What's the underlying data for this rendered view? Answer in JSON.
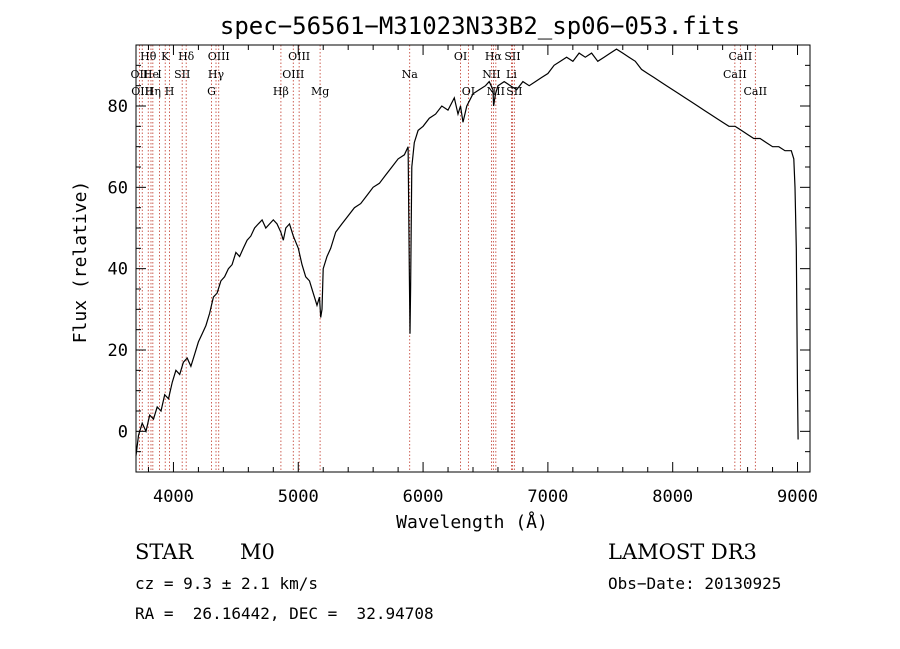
{
  "chart_data": {
    "type": "line",
    "title": "spec−56561−M31023N33B2_sp06−053.fits",
    "xlabel": "Wavelength (Å)",
    "ylabel": "Flux (relative)",
    "xlim": [
      3700,
      9100
    ],
    "ylim": [
      -10,
      95
    ],
    "xticks": [
      4000,
      5000,
      6000,
      7000,
      8000,
      9000
    ],
    "yticks": [
      0,
      20,
      40,
      60,
      80
    ],
    "series": [
      {
        "name": "flux",
        "x": [
          3700,
          3720,
          3750,
          3780,
          3810,
          3840,
          3870,
          3900,
          3930,
          3960,
          3990,
          4020,
          4050,
          4080,
          4110,
          4140,
          4170,
          4200,
          4230,
          4260,
          4290,
          4320,
          4350,
          4380,
          4410,
          4440,
          4470,
          4500,
          4530,
          4560,
          4590,
          4620,
          4650,
          4680,
          4710,
          4740,
          4770,
          4800,
          4830,
          4860,
          4880,
          4900,
          4930,
          4960,
          5000,
          5030,
          5060,
          5090,
          5120,
          5150,
          5170,
          5180,
          5190,
          5200,
          5230,
          5260,
          5300,
          5350,
          5400,
          5450,
          5500,
          5550,
          5600,
          5650,
          5700,
          5750,
          5800,
          5850,
          5880,
          5890,
          5895,
          5900,
          5910,
          5930,
          5960,
          6000,
          6050,
          6100,
          6150,
          6200,
          6250,
          6280,
          6300,
          6320,
          6350,
          6400,
          6450,
          6500,
          6530,
          6560,
          6565,
          6580,
          6600,
          6650,
          6700,
          6750,
          6800,
          6850,
          6900,
          6950,
          7000,
          7050,
          7100,
          7150,
          7200,
          7250,
          7300,
          7350,
          7400,
          7450,
          7500,
          7550,
          7600,
          7650,
          7700,
          7750,
          7800,
          7850,
          7900,
          7950,
          8000,
          8050,
          8100,
          8150,
          8200,
          8250,
          8300,
          8350,
          8400,
          8450,
          8500,
          8550,
          8600,
          8650,
          8700,
          8750,
          8800,
          8850,
          8900,
          8950,
          8970,
          8980,
          8990,
          9000,
          9005
        ],
        "values": [
          -6,
          -1,
          2,
          0,
          4,
          3,
          6,
          5,
          9,
          8,
          12,
          15,
          14,
          17,
          18,
          16,
          19,
          22,
          24,
          26,
          29,
          33,
          34,
          37,
          38,
          40,
          41,
          44,
          43,
          45,
          47,
          48,
          50,
          51,
          52,
          50,
          51,
          52,
          51,
          49,
          47,
          50,
          51,
          48,
          45,
          41,
          38,
          37,
          34,
          31,
          33,
          28,
          30,
          40,
          43,
          45,
          49,
          51,
          53,
          55,
          56,
          58,
          60,
          61,
          63,
          65,
          67,
          68,
          70,
          40,
          24,
          35,
          65,
          71,
          74,
          75,
          77,
          78,
          80,
          79,
          82,
          78,
          80,
          76,
          80,
          83,
          84,
          85,
          86,
          84,
          80,
          83,
          85,
          86,
          85,
          84,
          86,
          85,
          86,
          87,
          88,
          90,
          91,
          92,
          91,
          93,
          92,
          93,
          91,
          92,
          93,
          94,
          93,
          92,
          91,
          89,
          88,
          87,
          86,
          85,
          84,
          83,
          82,
          81,
          80,
          79,
          78,
          77,
          76,
          75,
          75,
          74,
          73,
          72,
          72,
          71,
          70,
          70,
          69,
          69,
          67,
          60,
          45,
          10,
          -2
        ]
      }
    ],
    "lines": [
      {
        "name": "Hθ",
        "wl": 3798,
        "row": 0
      },
      {
        "name": "OII",
        "wl": 3727,
        "row": 1
      },
      {
        "name": "OIII",
        "wl": 3750,
        "row": 2
      },
      {
        "name": "He",
        "wl": 3820,
        "row": 1
      },
      {
        "name": "K",
        "wl": 3934,
        "row": 0
      },
      {
        "name": "Hη",
        "wl": 3835,
        "row": 2
      },
      {
        "name": "Hδ",
        "wl": 4102,
        "row": 0
      },
      {
        "name": "I",
        "wl": 3889,
        "row": 1
      },
      {
        "name": "SII",
        "wl": 4070,
        "row": 1
      },
      {
        "name": "H",
        "wl": 3969,
        "row": 2
      },
      {
        "name": "OIII",
        "wl": 4363,
        "row": 0
      },
      {
        "name": "Hγ",
        "wl": 4341,
        "row": 1
      },
      {
        "name": "G",
        "wl": 4305,
        "row": 2
      },
      {
        "name": "OIII",
        "wl": 5007,
        "row": 0
      },
      {
        "name": "OIII",
        "wl": 4960,
        "row": 1
      },
      {
        "name": "Hβ",
        "wl": 4861,
        "row": 2
      },
      {
        "name": "Mg",
        "wl": 5175,
        "row": 2
      },
      {
        "name": "Na",
        "wl": 5893,
        "row": 1
      },
      {
        "name": "OI",
        "wl": 6300,
        "row": 0
      },
      {
        "name": "OI",
        "wl": 6363,
        "row": 2
      },
      {
        "name": "Hα",
        "wl": 6563,
        "row": 0
      },
      {
        "name": "SII",
        "wl": 6716,
        "row": 0
      },
      {
        "name": "NII",
        "wl": 6548,
        "row": 1
      },
      {
        "name": "Li",
        "wl": 6708,
        "row": 1
      },
      {
        "name": "NII",
        "wl": 6583,
        "row": 2
      },
      {
        "name": "SII",
        "wl": 6731,
        "row": 2
      },
      {
        "name": "CaII",
        "wl": 8542,
        "row": 0
      },
      {
        "name": "CaII",
        "wl": 8498,
        "row": 1
      },
      {
        "name": "CaII",
        "wl": 8662,
        "row": 2
      }
    ]
  },
  "info": {
    "class_type": "STAR",
    "subclass": "M0",
    "survey": "LAMOST DR3",
    "cz": "cz = 9.3 ± 2.1 km/s",
    "obs_date": "Obs−Date: 20130925",
    "radec": "RA =  26.16442, DEC =  32.94708"
  },
  "colors": {
    "line_marker": "#c0392b",
    "spectrum": "#000000"
  }
}
